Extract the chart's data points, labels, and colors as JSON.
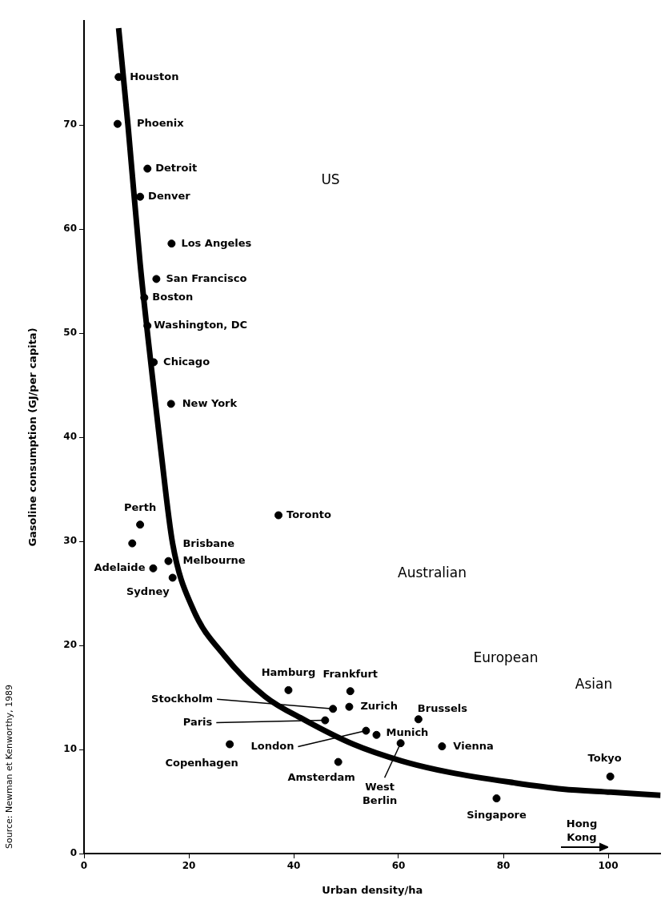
{
  "chart_data": {
    "type": "scatter",
    "xlabel": "Urban density/ha",
    "ylabel": "Gasoline consumption (GJ/per capita)",
    "xlim": [
      0,
      110
    ],
    "xticks": [
      0,
      20,
      40,
      60,
      80,
      100
    ],
    "ylim": [
      0,
      80
    ],
    "yticks": [
      0,
      10,
      20,
      30,
      40,
      50,
      60,
      70
    ],
    "grid": false,
    "legend": false,
    "marker": "circle",
    "series": [
      {
        "color": "#000000",
        "x": [
          6.6,
          6.4,
          12.1,
          10.7,
          16.7,
          13.8,
          11.5,
          12.1,
          13.3,
          16.6,
          10.7,
          9.2,
          16.1,
          13.2,
          16.9,
          37.1,
          39.0,
          50.8,
          47.5,
          50.6,
          46.0,
          63.8,
          53.8,
          55.8,
          60.4,
          68.3,
          48.5,
          27.8,
          100.4,
          78.7
        ],
        "values": [
          74.6,
          70.1,
          65.8,
          63.1,
          58.6,
          55.2,
          53.4,
          50.7,
          47.2,
          43.2,
          31.6,
          29.8,
          28.1,
          27.4,
          26.5,
          32.5,
          15.7,
          15.6,
          13.9,
          14.1,
          12.8,
          12.9,
          11.8,
          11.4,
          10.6,
          10.3,
          8.8,
          10.5,
          7.4,
          5.3
        ]
      },
      {
        "type": "line",
        "color": "#000000",
        "marker": "none",
        "line_style": "solid",
        "x": [
          6.6,
          8.4,
          10.7,
          13.0,
          14.6,
          16.9,
          20.7,
          26.8,
          34.5,
          42.2,
          51.4,
          60.6,
          69.8,
          82.1,
          91.3,
          100.5,
          110.0
        ],
        "values": [
          79.3,
          69.9,
          56.7,
          46.0,
          39.0,
          29.8,
          23.6,
          19.0,
          15.1,
          12.8,
          10.5,
          8.9,
          7.8,
          6.8,
          6.2,
          5.9,
          5.6
        ]
      }
    ],
    "annotations": [
      {
        "text": "Houston",
        "x": 6.6,
        "y": 74.6
      },
      {
        "text": "Phoenix",
        "x": 6.4,
        "y": 70.1
      },
      {
        "text": "Detroit",
        "x": 12.1,
        "y": 65.8
      },
      {
        "text": "Denver",
        "x": 10.7,
        "y": 63.1
      },
      {
        "text": "Los Angeles",
        "x": 16.7,
        "y": 58.6
      },
      {
        "text": "San Francisco",
        "x": 13.8,
        "y": 55.2
      },
      {
        "text": "Boston",
        "x": 11.5,
        "y": 53.4
      },
      {
        "text": "Washington, DC",
        "x": 12.1,
        "y": 50.7
      },
      {
        "text": "Chicago",
        "x": 13.3,
        "y": 47.2
      },
      {
        "text": "New York",
        "x": 16.6,
        "y": 43.2
      },
      {
        "text": "Perth",
        "x": 10.7,
        "y": 31.6
      },
      {
        "text": "Brisbane",
        "x": 16.1,
        "y": 28.1
      },
      {
        "text": "Melbourne",
        "x": 16.1,
        "y": 28.1
      },
      {
        "text": "Adelaide",
        "x": 13.2,
        "y": 27.4
      },
      {
        "text": "Sydney",
        "x": 16.9,
        "y": 26.5
      },
      {
        "text": "Toronto",
        "x": 37.1,
        "y": 32.5
      },
      {
        "text": "Hamburg",
        "x": 39.0,
        "y": 15.7
      },
      {
        "text": "Frankfurt",
        "x": 50.8,
        "y": 15.6
      },
      {
        "text": "Stockholm",
        "x": 47.5,
        "y": 13.9
      },
      {
        "text": "Zurich",
        "x": 50.6,
        "y": 14.1
      },
      {
        "text": "Paris",
        "x": 46.0,
        "y": 12.8
      },
      {
        "text": "Brussels",
        "x": 63.8,
        "y": 12.9
      },
      {
        "text": "London",
        "x": 53.8,
        "y": 11.8
      },
      {
        "text": "Munich",
        "x": 55.8,
        "y": 11.4
      },
      {
        "text": "West Berlin",
        "x": 60.4,
        "y": 10.6
      },
      {
        "text": "Vienna",
        "x": 68.3,
        "y": 10.3
      },
      {
        "text": "Amsterdam",
        "x": 48.5,
        "y": 8.8
      },
      {
        "text": "Copenhagen",
        "x": 27.8,
        "y": 10.5
      },
      {
        "text": "Tokyo",
        "x": 100.4,
        "y": 7.4
      },
      {
        "text": "Singapore",
        "x": 78.7,
        "y": 5.3
      },
      "US",
      "Australian",
      "European",
      "Asian",
      "Hong Kong",
      "Source: Newman et Kenworthy, 1989"
    ]
  }
}
